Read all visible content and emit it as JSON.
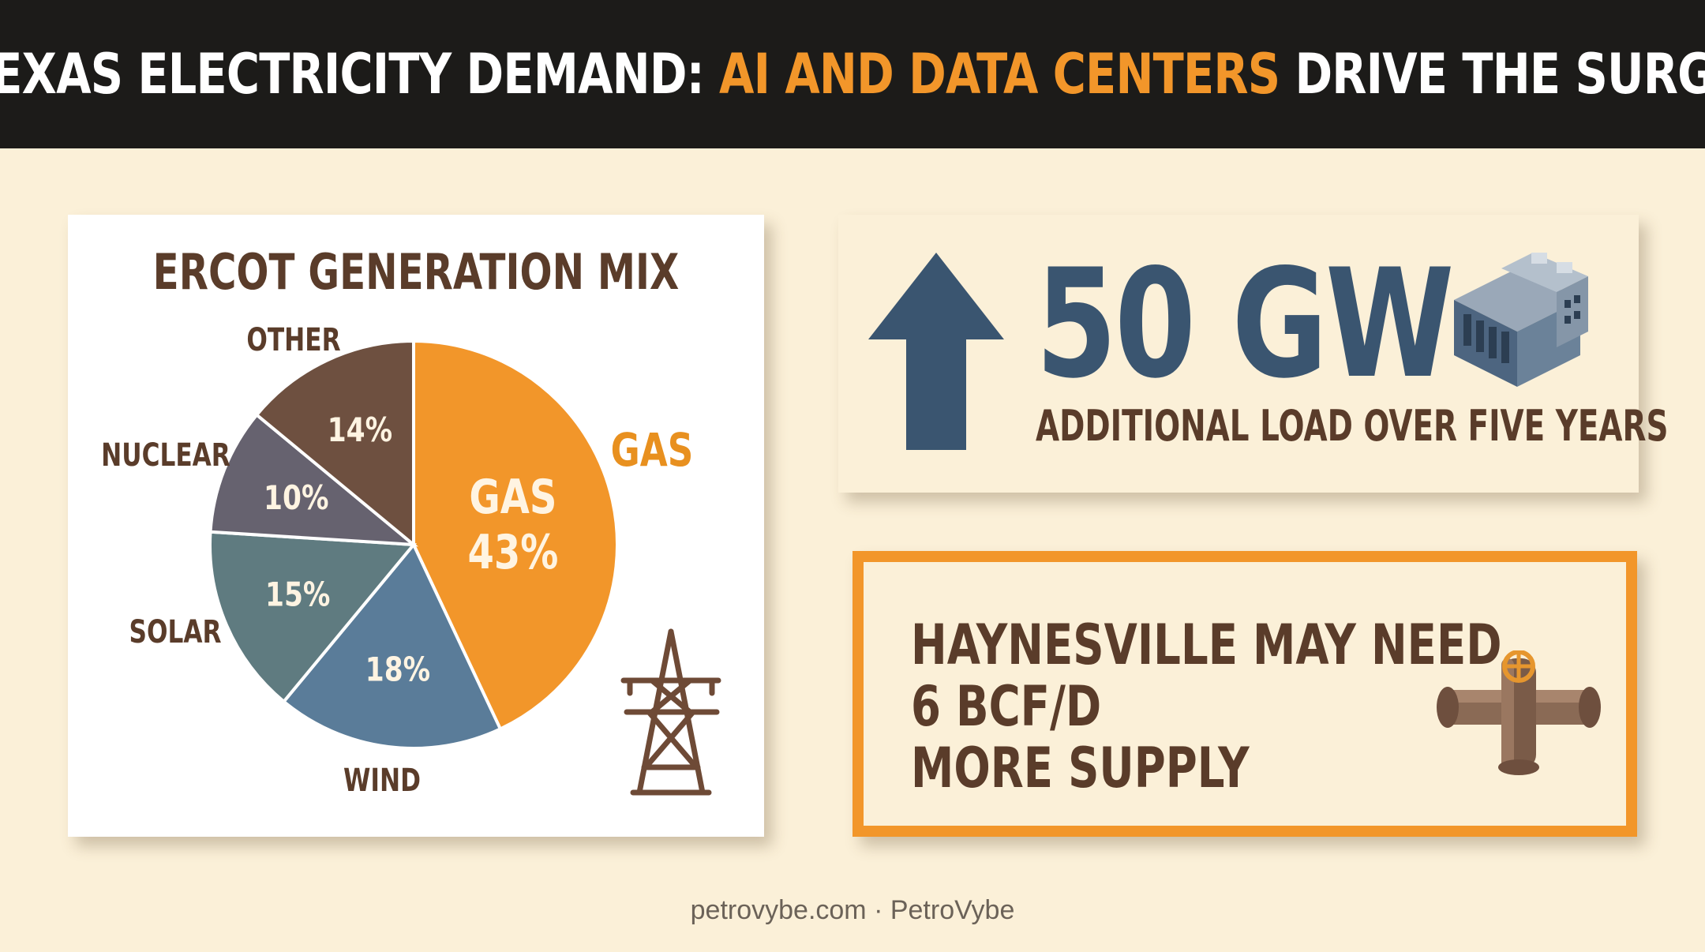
{
  "header": {
    "title_part1": "TEXAS ELECTRICITY DEMAND: ",
    "title_highlight": "AI AND DATA CENTERS",
    "title_part2": " DRIVE THE SURGE"
  },
  "colors": {
    "header_bg": "#1c1b19",
    "accent_orange": "#f2962a",
    "page_bg": "#fbf0d8",
    "dark_brown": "#5a3c2a",
    "slate_blue": "#3a5570"
  },
  "chart_data": {
    "type": "pie",
    "title": "ERCOT GENERATION MIX",
    "slices": [
      {
        "label": "GAS",
        "inner_label": "GAS",
        "value": 43,
        "display": "43%",
        "color": "#f2962a",
        "outer_color": "#e8901f"
      },
      {
        "label": "WIND",
        "value": 18,
        "display": "18%",
        "color": "#5a7c99",
        "outer_color": "#5a3c2a"
      },
      {
        "label": "SOLAR",
        "value": 15,
        "display": "15%",
        "color": "#5f7b80",
        "outer_color": "#5a3c2a"
      },
      {
        "label": "NUCLEAR",
        "value": 10,
        "display": "10%",
        "color": "#66626f",
        "outer_color": "#5a3c2a"
      },
      {
        "label": "OTHER",
        "value": 14,
        "display": "14%",
        "color": "#6e5040",
        "outer_color": "#5a3c2a"
      }
    ]
  },
  "stat": {
    "value": "50 GW",
    "description": "ADDITIONAL LOAD OVER FIVE YEARS",
    "arrow_icon": "up-arrow-icon",
    "icon": "data-center-icon"
  },
  "supply": {
    "lines": [
      "HAYNESVILLE MAY NEED",
      "6 BCF/D",
      "MORE SUPPLY"
    ],
    "icon": "pipe-valve-icon"
  },
  "footer": {
    "text": "petrovybe.com · PetroVybe"
  },
  "tower_icon": "transmission-tower-icon"
}
